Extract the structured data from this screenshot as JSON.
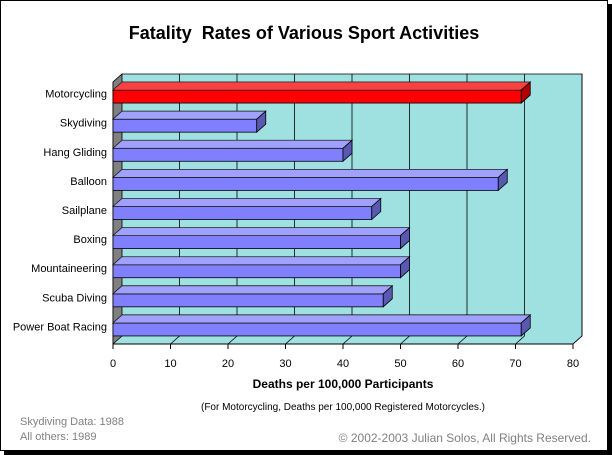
{
  "chart_data": {
    "type": "bar",
    "orientation": "horizontal",
    "title": "Fatality  Rates of Various Sport Activities",
    "xlabel": "Deaths per 100,000 Participants",
    "xlabel_note": "(For Motorcycling, Deaths per 100,000 Registered Motorcycles.)",
    "ylabel": "",
    "xlim": [
      0,
      80
    ],
    "x_ticks": [
      "0",
      "10",
      "20",
      "30",
      "40",
      "50",
      "60",
      "70",
      "80"
    ],
    "grid": "vertical",
    "categories": [
      "Motorcycling",
      "Skydiving",
      "Hang Gliding",
      "Balloon",
      "Sailplane",
      "Boxing",
      "Mountaineering",
      "Scuba Diving",
      "Power Boat Racing"
    ],
    "values": [
      71,
      25,
      40,
      67,
      45,
      50,
      50,
      47,
      71
    ],
    "highlight_category": "Motorcycling",
    "colors": {
      "plot_background": "#9fe0e0",
      "bar_default": "#8080ff",
      "bar_highlight": "#ff0000",
      "wall_side": "#808080"
    }
  },
  "footnotes": {
    "line1": "Skydiving Data: 1988",
    "line2": "All others: 1989"
  },
  "copyright": "© 2002-2003 Julian Solos, All Rights Reserved."
}
